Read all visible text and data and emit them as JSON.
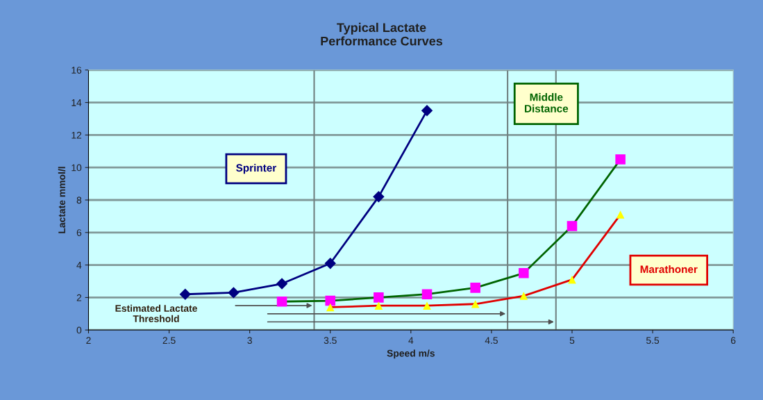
{
  "chart_data": {
    "type": "line",
    "title": "Typical Lactate\nPerformance Curves",
    "xlabel": "Speed m/s",
    "ylabel": "Lactate mmol/l",
    "xlim": [
      2,
      6
    ],
    "xticks": [
      2,
      2.5,
      3,
      3.5,
      4,
      4.5,
      5,
      5.5,
      6
    ],
    "ylim": [
      0,
      16
    ],
    "yticks": [
      0,
      2,
      4,
      6,
      8,
      10,
      12,
      14,
      16
    ],
    "grid": "y",
    "legend": false,
    "series": [
      {
        "name": "Sprinter",
        "color": "#000080",
        "colors": [
          "#000080",
          "#000080",
          "#000080",
          "#000080",
          "#000080",
          "#000080"
        ],
        "marker": "diamond",
        "x": [
          2.6,
          2.9,
          3.2,
          3.5,
          3.8,
          4.1
        ],
        "values": [
          2.2,
          2.3,
          2.85,
          4.1,
          8.2,
          13.5
        ]
      },
      {
        "name": "Middle Distance",
        "color": "#006400",
        "colors": [
          "#ff00ff",
          "#ff00ff",
          "#ff00ff",
          "#ff00ff",
          "#ff00ff",
          "#ff00ff",
          "#ff00ff",
          "#ff00ff"
        ],
        "marker": "square",
        "x": [
          3.2,
          3.5,
          3.8,
          4.1,
          4.4,
          4.7,
          5.0,
          5.3
        ],
        "values": [
          1.75,
          1.8,
          2.0,
          2.2,
          2.6,
          3.5,
          6.4,
          10.5
        ]
      },
      {
        "name": "Marathoner",
        "color": "#e00000",
        "colors": [
          "#ffff00",
          "#ffff00",
          "#ffff00",
          "#ffff00",
          "#ffff00",
          "#ffff00",
          "#ffff00"
        ],
        "marker": "triangle",
        "x": [
          3.5,
          3.8,
          4.1,
          4.4,
          4.7,
          5.0,
          5.3
        ],
        "values": [
          1.4,
          1.5,
          1.5,
          1.6,
          2.1,
          3.1,
          7.1
        ]
      }
    ],
    "ref_lines": [
      {
        "axis": "x",
        "value": 3.4,
        "color": "#708080"
      },
      {
        "axis": "x",
        "value": 4.6,
        "color": "#708080"
      },
      {
        "axis": "x",
        "value": 4.9,
        "color": "#708080"
      }
    ],
    "annotations": [
      "Estimated Lactate\nThreshold"
    ]
  }
}
